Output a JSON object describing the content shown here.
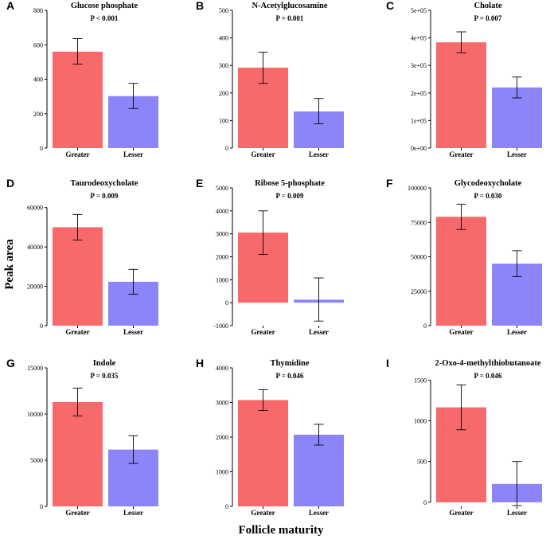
{
  "figure": {
    "ylabel": "Peak area",
    "xlabel": "Follicle maturity",
    "colors": {
      "greater": "#F8696B",
      "lesser": "#8B85F9",
      "axis": "#000000"
    }
  },
  "chart_data": [
    {
      "type": "bar",
      "panel_label": "A",
      "title": "Glucose phosphate",
      "pvalue": "P < 0.001",
      "categories": [
        "Greater",
        "Lesser"
      ],
      "values": [
        560,
        302
      ],
      "err_low": [
        488,
        230
      ],
      "err_high": [
        636,
        376
      ],
      "ylim": [
        0,
        800
      ],
      "yticks": [
        0,
        200,
        400,
        600,
        800
      ],
      "ytick_labels": [
        "0",
        "200",
        "400",
        "600",
        "800"
      ]
    },
    {
      "type": "bar",
      "panel_label": "B",
      "title": "N-Acetylglucosamine",
      "pvalue": "P = 0.001",
      "categories": [
        "Greater",
        "Lesser"
      ],
      "values": [
        292,
        133
      ],
      "err_low": [
        235,
        88
      ],
      "err_high": [
        348,
        180
      ],
      "ylim": [
        0,
        500
      ],
      "yticks": [
        0,
        100,
        200,
        300,
        400,
        500
      ],
      "ytick_labels": [
        "0",
        "100",
        "200",
        "300",
        "400",
        "500"
      ]
    },
    {
      "type": "bar",
      "panel_label": "C",
      "title": "Cholate",
      "pvalue": "P = 0.007",
      "categories": [
        "Greater",
        "Lesser"
      ],
      "values": [
        384000,
        220000
      ],
      "err_low": [
        346000,
        182000
      ],
      "err_high": [
        422000,
        258000
      ],
      "ylim": [
        0,
        500000
      ],
      "yticks": [
        0,
        100000,
        200000,
        300000,
        400000,
        500000
      ],
      "ytick_labels": [
        "0e+00",
        "1e+05",
        "2e+05",
        "3e+05",
        "4e+05",
        "5e+05"
      ]
    },
    {
      "type": "bar",
      "panel_label": "D",
      "title": "Taurodeoxycholate",
      "pvalue": "P = 0.009",
      "categories": [
        "Greater",
        "Lesser"
      ],
      "values": [
        50000,
        22300
      ],
      "err_low": [
        43500,
        16000
      ],
      "err_high": [
        56500,
        28600
      ],
      "ylim": [
        0,
        70000
      ],
      "yticks": [
        0,
        20000,
        40000,
        60000
      ],
      "ytick_labels": [
        "0",
        "20000",
        "40000",
        "60000"
      ]
    },
    {
      "type": "bar",
      "panel_label": "E",
      "title": "Ribose 5-phosphate",
      "pvalue": "P = 0.009",
      "categories": [
        "Greater",
        "Lesser"
      ],
      "values": [
        3050,
        130
      ],
      "err_low": [
        2100,
        -800
      ],
      "err_high": [
        4000,
        1080
      ],
      "ylim": [
        -1000,
        5000
      ],
      "yticks": [
        -1000,
        0,
        1000,
        2000,
        3000,
        4000,
        5000
      ],
      "ytick_labels": [
        "-1000",
        "0",
        "1000",
        "2000",
        "3000",
        "4000",
        "5000"
      ]
    },
    {
      "type": "bar",
      "panel_label": "F",
      "title": "Glycodeoxycholate",
      "pvalue": "P = 0.030",
      "categories": [
        "Greater",
        "Lesser"
      ],
      "values": [
        79000,
        45000
      ],
      "err_low": [
        69800,
        35600
      ],
      "err_high": [
        88200,
        54400
      ],
      "ylim": [
        0,
        100000
      ],
      "yticks": [
        0,
        25000,
        50000,
        75000,
        100000
      ],
      "ytick_labels": [
        "0",
        "25000",
        "50000",
        "75000",
        "100000"
      ]
    },
    {
      "type": "bar",
      "panel_label": "G",
      "title": "Indole",
      "pvalue": "P = 0.035",
      "categories": [
        "Greater",
        "Lesser"
      ],
      "values": [
        11300,
        6150
      ],
      "err_low": [
        9800,
        4650
      ],
      "err_high": [
        12800,
        7650
      ],
      "ylim": [
        0,
        15000
      ],
      "yticks": [
        0,
        5000,
        10000,
        15000
      ],
      "ytick_labels": [
        "0",
        "5000",
        "10000",
        "15000"
      ]
    },
    {
      "type": "bar",
      "panel_label": "H",
      "title": "Thymidine",
      "pvalue": "P = 0.046",
      "categories": [
        "Greater",
        "Lesser"
      ],
      "values": [
        3070,
        2070
      ],
      "err_low": [
        2770,
        1770
      ],
      "err_high": [
        3370,
        2370
      ],
      "ylim": [
        0,
        4000
      ],
      "yticks": [
        0,
        1000,
        2000,
        3000,
        4000
      ],
      "ytick_labels": [
        "0",
        "1000",
        "2000",
        "3000",
        "4000"
      ]
    },
    {
      "type": "bar",
      "panel_label": "I",
      "title": "2-Oxo-4-methylthiobutanoate",
      "pvalue": "P = 0.046",
      "categories": [
        "Greater",
        "Lesser"
      ],
      "values": [
        1165,
        225
      ],
      "err_low": [
        890,
        -40
      ],
      "err_high": [
        1440,
        500
      ],
      "ylim": [
        -50,
        1650
      ],
      "yticks": [
        0,
        500,
        1000,
        1500
      ],
      "ytick_labels": [
        "0",
        "500",
        "1000",
        "1500"
      ]
    }
  ]
}
